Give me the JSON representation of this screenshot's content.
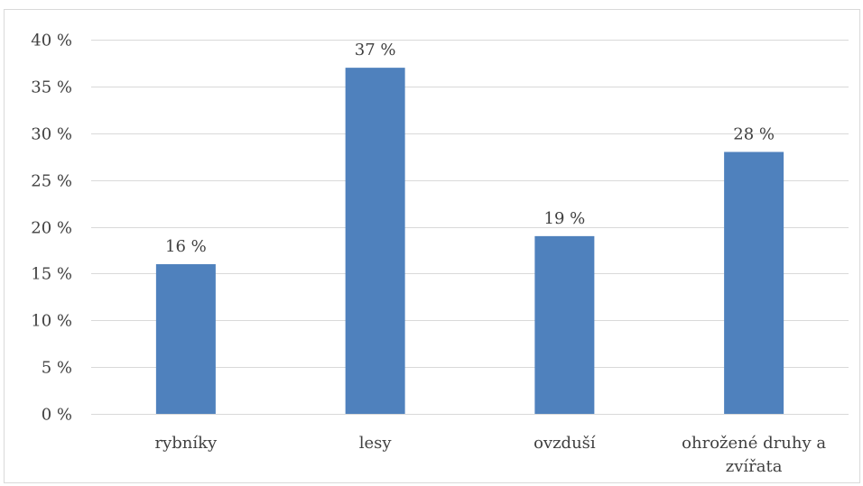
{
  "chart_data": {
    "type": "bar",
    "categories": [
      [
        "rybníky"
      ],
      [
        "lesy"
      ],
      [
        "ovzduší"
      ],
      [
        "ohrožené druhy a",
        "zvířata"
      ]
    ],
    "values": [
      16,
      37,
      19,
      28
    ],
    "data_labels": [
      "16 %",
      "37 %",
      "19 %",
      "28 %"
    ],
    "ylim": [
      0,
      40
    ],
    "y_ticks": [
      0,
      5,
      10,
      15,
      20,
      25,
      30,
      35,
      40
    ],
    "y_tick_labels": [
      "0 %",
      "5 %",
      "10 %",
      "15 %",
      "20 %",
      "25 %",
      "30 %",
      "35 %",
      "40 %"
    ],
    "grid": true,
    "bar_color": "#4f81bd",
    "grid_color": "#d9d9d9",
    "text_color": "#404040",
    "title": "",
    "xlabel": "",
    "ylabel": ""
  }
}
